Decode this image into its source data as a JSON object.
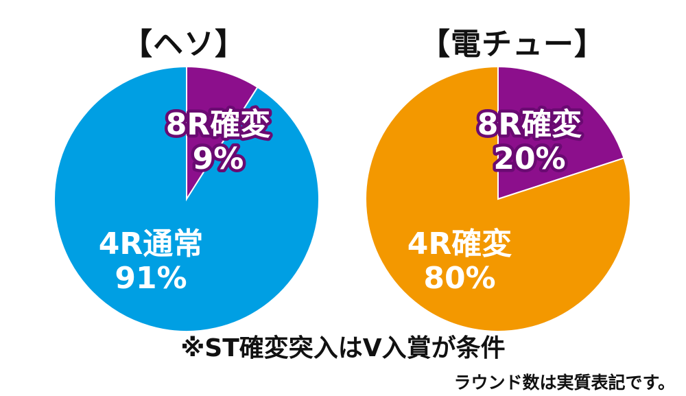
{
  "titles": {
    "left": "【ヘソ】",
    "right": "【電チュー】"
  },
  "chart_data": [
    {
      "type": "pie",
      "title": "【ヘソ】",
      "slices": [
        {
          "label": "8R確変",
          "value": 9,
          "display": "9%",
          "color": "#8c0f8c"
        },
        {
          "label": "4R通常",
          "value": 91,
          "display": "91%",
          "color": "#009fe3"
        }
      ]
    },
    {
      "type": "pie",
      "title": "【電チュー】",
      "slices": [
        {
          "label": "8R確変",
          "value": 20,
          "display": "20%",
          "color": "#8c0f8c"
        },
        {
          "label": "4R確変",
          "value": 80,
          "display": "80%",
          "color": "#f39800"
        }
      ]
    }
  ],
  "footnote": "※ST確変突入はV入賞が条件",
  "note": "ラウンド数は実質表記です。"
}
